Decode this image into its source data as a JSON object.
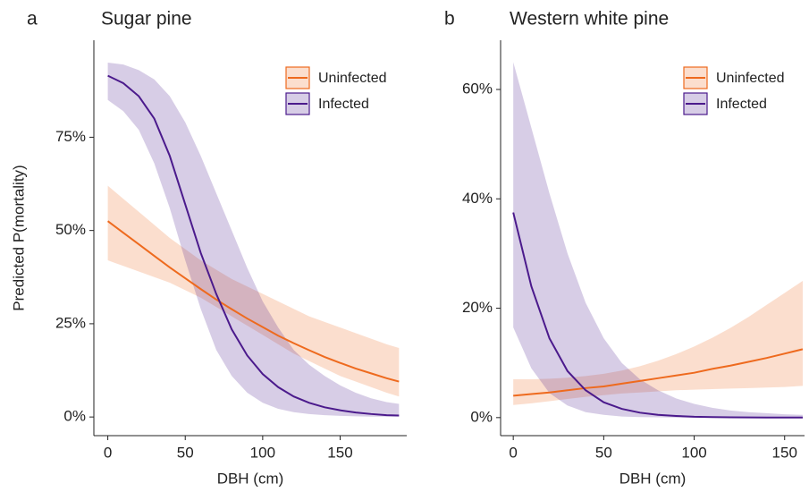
{
  "chart_data": [
    {
      "type": "line",
      "panel_label": "a",
      "title": "Sugar pine",
      "x_label": "DBH (cm)",
      "y_label": "Predicted P(mortality)",
      "x": [
        0,
        10,
        20,
        30,
        40,
        50,
        60,
        70,
        80,
        90,
        100,
        110,
        120,
        130,
        140,
        150,
        160,
        170,
        180,
        188
      ],
      "xlim": [
        -9,
        193
      ],
      "xticks": [
        0,
        50,
        100,
        150
      ],
      "ylim": [
        -5,
        101
      ],
      "yticks": [
        {
          "value": 0,
          "label": "0%"
        },
        {
          "value": 25,
          "label": "25%"
        },
        {
          "value": 50,
          "label": "50%"
        },
        {
          "value": 75,
          "label": "75%"
        }
      ],
      "legend": "top-right",
      "series": [
        {
          "name": "Uninfected",
          "color": "#ee6a1e",
          "values": [
            52.5,
            49.4,
            46.3,
            43.2,
            40.1,
            37.2,
            34.3,
            31.5,
            28.9,
            26.4,
            24.1,
            21.8,
            19.8,
            17.9,
            16.1,
            14.5,
            13.0,
            11.7,
            10.4,
            9.5
          ],
          "lower": [
            42,
            40.5,
            39,
            37.5,
            36,
            34,
            32,
            29.5,
            27,
            24.5,
            22,
            19.5,
            17,
            15,
            13,
            11,
            9.5,
            8,
            6.5,
            5.5
          ],
          "upper": [
            62,
            58.5,
            55,
            51.5,
            48,
            45,
            42,
            39.5,
            37,
            35,
            33,
            31,
            29,
            27,
            25.5,
            24,
            22.5,
            21,
            19.5,
            18.5
          ]
        },
        {
          "name": "Infected",
          "color": "#4b1a8c",
          "values": [
            91.5,
            89.5,
            86,
            80,
            70,
            57,
            44,
            33,
            23.5,
            16.5,
            11.5,
            8,
            5.5,
            3.8,
            2.6,
            1.8,
            1.2,
            0.8,
            0.5,
            0.4
          ],
          "lower": [
            85,
            82,
            77,
            68,
            56,
            42,
            29,
            18,
            11,
            6.5,
            3.8,
            2.2,
            1.3,
            0.8,
            0.5,
            0.3,
            0.2,
            0.1,
            0.1,
            0.1
          ],
          "upper": [
            95,
            94.5,
            93,
            90.5,
            86,
            79,
            70,
            60,
            50,
            40,
            31,
            24,
            18,
            14,
            11,
            8.5,
            6.5,
            5,
            4,
            3.5
          ]
        }
      ]
    },
    {
      "type": "line",
      "panel_label": "b",
      "title": "Western white pine",
      "x_label": "DBH (cm)",
      "x": [
        0,
        10,
        20,
        30,
        40,
        50,
        60,
        70,
        80,
        90,
        100,
        110,
        120,
        130,
        140,
        150,
        160
      ],
      "xlim": [
        -7,
        161
      ],
      "xticks": [
        0,
        50,
        100,
        150
      ],
      "ylim": [
        -3.3,
        69
      ],
      "yticks": [
        {
          "value": 0,
          "label": "0%"
        },
        {
          "value": 20,
          "label": "20%"
        },
        {
          "value": 40,
          "label": "40%"
        },
        {
          "value": 60,
          "label": "60%"
        }
      ],
      "legend": "top-right",
      "series": [
        {
          "name": "Uninfected",
          "color": "#ee6a1e",
          "values": [
            4.0,
            4.3,
            4.6,
            5.0,
            5.4,
            5.7,
            6.2,
            6.7,
            7.2,
            7.7,
            8.2,
            8.9,
            9.5,
            10.2,
            10.9,
            11.7,
            12.5
          ],
          "lower": [
            2.3,
            2.6,
            3.0,
            3.4,
            3.8,
            4.1,
            4.4,
            4.6,
            4.8,
            5.0,
            5.1,
            5.2,
            5.3,
            5.4,
            5.5,
            5.6,
            5.8
          ],
          "upper": [
            7,
            7,
            7.1,
            7.3,
            7.6,
            8,
            8.6,
            9.4,
            10.4,
            11.6,
            13,
            14.6,
            16.4,
            18.4,
            20.6,
            22.8,
            25
          ]
        },
        {
          "name": "Infected",
          "color": "#4b1a8c",
          "values": [
            37.5,
            24,
            14.5,
            8.5,
            5,
            2.8,
            1.6,
            0.9,
            0.5,
            0.3,
            0.15,
            0.1,
            0.05,
            0.03,
            0.02,
            0.01,
            0.01
          ],
          "lower": [
            16.5,
            9,
            4.5,
            2.2,
            1,
            0.5,
            0.2,
            0.1,
            0.05,
            0,
            0,
            0,
            0,
            0,
            0,
            0,
            0
          ],
          "upper": [
            65,
            53,
            41,
            30,
            21,
            14.5,
            10,
            7,
            5,
            3.5,
            2.5,
            1.8,
            1.3,
            1,
            0.8,
            0.6,
            0.5
          ]
        }
      ]
    }
  ]
}
